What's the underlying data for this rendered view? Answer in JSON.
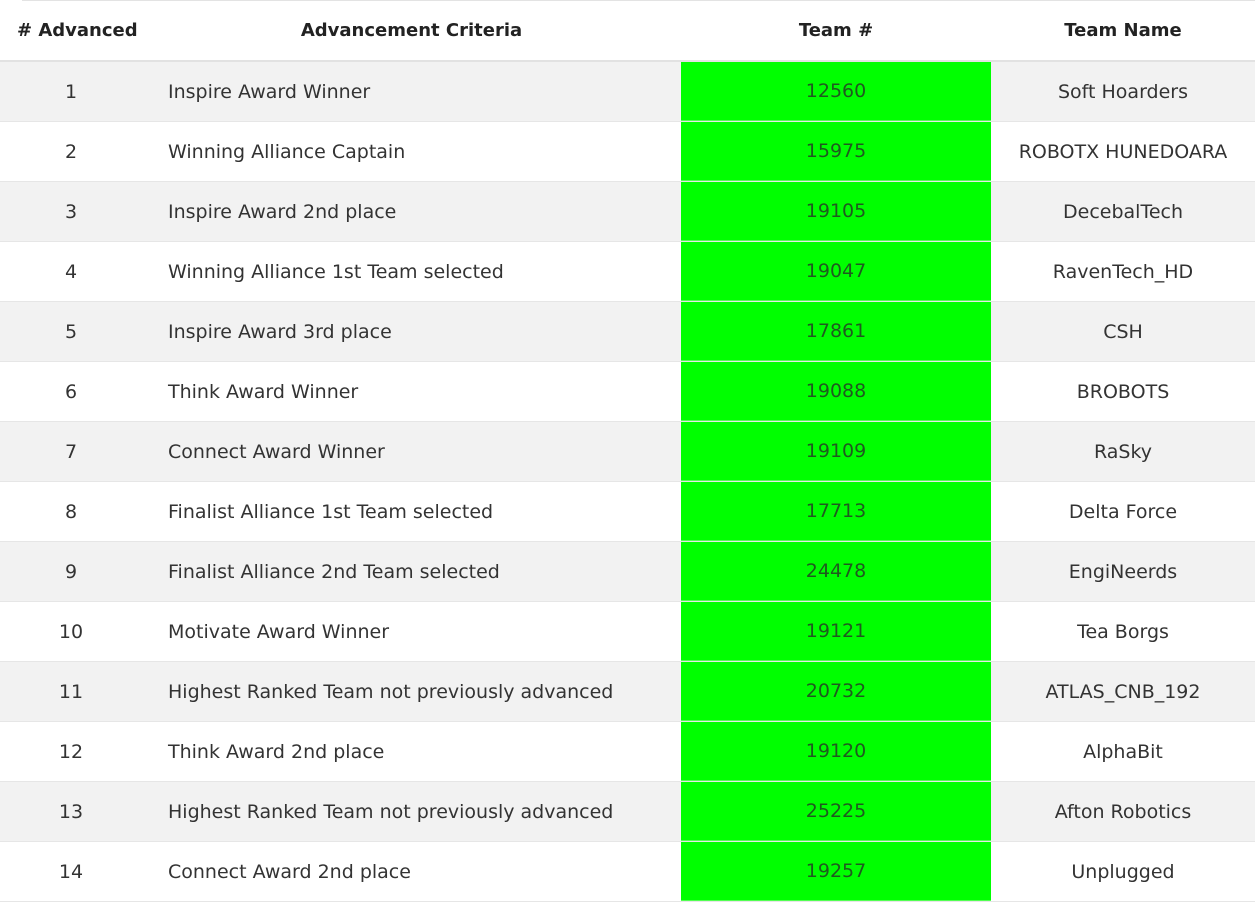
{
  "columns": {
    "advanced": "# Advanced",
    "criteria": "Advancement Criteria",
    "team_number": "Team #",
    "team_name": "Team Name"
  },
  "colors": {
    "team_number_highlight": "#00ff00",
    "odd_row": "#f2f2f2",
    "even_row": "#ffffff"
  },
  "rows": [
    {
      "advanced": "1",
      "criteria": "Inspire Award Winner",
      "team_number": "12560",
      "team_name": "Soft Hoarders"
    },
    {
      "advanced": "2",
      "criteria": "Winning Alliance Captain",
      "team_number": "15975",
      "team_name": "ROBOTX HUNEDOARA"
    },
    {
      "advanced": "3",
      "criteria": "Inspire Award 2nd place",
      "team_number": "19105",
      "team_name": "DecebalTech"
    },
    {
      "advanced": "4",
      "criteria": "Winning Alliance 1st Team selected",
      "team_number": "19047",
      "team_name": "RavenTech_HD"
    },
    {
      "advanced": "5",
      "criteria": "Inspire Award 3rd place",
      "team_number": "17861",
      "team_name": "CSH"
    },
    {
      "advanced": "6",
      "criteria": "Think Award Winner",
      "team_number": "19088",
      "team_name": "BROBOTS"
    },
    {
      "advanced": "7",
      "criteria": "Connect Award Winner",
      "team_number": "19109",
      "team_name": "RaSky"
    },
    {
      "advanced": "8",
      "criteria": "Finalist Alliance 1st Team selected",
      "team_number": "17713",
      "team_name": "Delta Force"
    },
    {
      "advanced": "9",
      "criteria": "Finalist Alliance 2nd Team selected",
      "team_number": "24478",
      "team_name": "EngiNeerds"
    },
    {
      "advanced": "10",
      "criteria": "Motivate Award Winner",
      "team_number": "19121",
      "team_name": "Tea Borgs"
    },
    {
      "advanced": "11",
      "criteria": "Highest Ranked Team not previously advanced",
      "team_number": "20732",
      "team_name": "ATLAS_CNB_192"
    },
    {
      "advanced": "12",
      "criteria": "Think Award 2nd place",
      "team_number": "19120",
      "team_name": "AlphaBit"
    },
    {
      "advanced": "13",
      "criteria": "Highest Ranked Team not previously advanced",
      "team_number": "25225",
      "team_name": "Afton Robotics"
    },
    {
      "advanced": "14",
      "criteria": "Connect Award 2nd place",
      "team_number": "19257",
      "team_name": "Unplugged"
    }
  ]
}
